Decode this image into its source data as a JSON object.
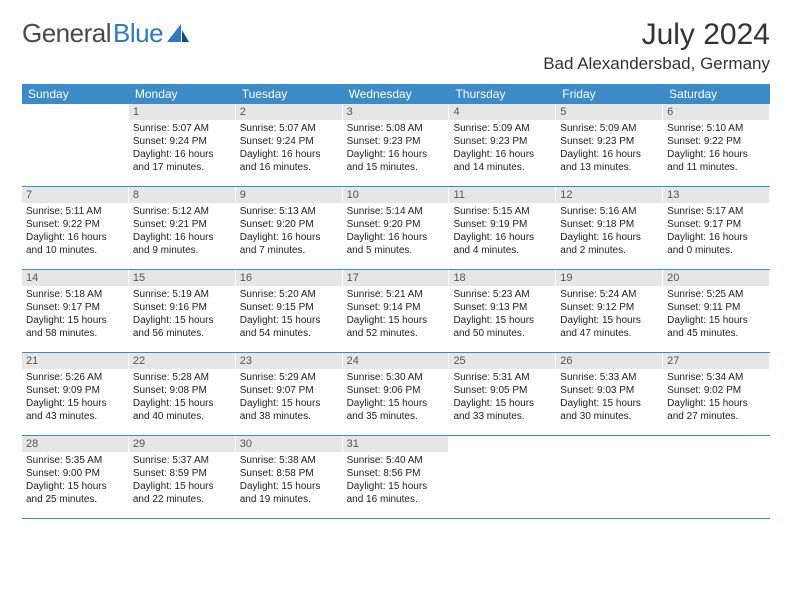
{
  "logo": {
    "text1": "General",
    "text2": "Blue"
  },
  "title": "July 2024",
  "location": "Bad Alexandersbad, Germany",
  "colors": {
    "header_bg": "#3b8bc9",
    "header_text": "#ffffff",
    "daynum_bg": "#e6e6e6",
    "daynum_text": "#555555",
    "body_text": "#222222",
    "row_border": "#3b8bc9",
    "logo_gray": "#4a4a4a",
    "logo_blue": "#2f7ac1",
    "page_bg": "#ffffff"
  },
  "typography": {
    "title_fontsize": 30,
    "location_fontsize": 17,
    "header_fontsize": 12,
    "daynum_fontsize": 11,
    "body_fontsize": 10,
    "logo_fontsize": 26
  },
  "day_headers": [
    "Sunday",
    "Monday",
    "Tuesday",
    "Wednesday",
    "Thursday",
    "Friday",
    "Saturday"
  ],
  "weeks": [
    [
      {
        "n": "",
        "sr": "",
        "ss": "",
        "dl": ""
      },
      {
        "n": "1",
        "sr": "Sunrise: 5:07 AM",
        "ss": "Sunset: 9:24 PM",
        "dl": "Daylight: 16 hours and 17 minutes."
      },
      {
        "n": "2",
        "sr": "Sunrise: 5:07 AM",
        "ss": "Sunset: 9:24 PM",
        "dl": "Daylight: 16 hours and 16 minutes."
      },
      {
        "n": "3",
        "sr": "Sunrise: 5:08 AM",
        "ss": "Sunset: 9:23 PM",
        "dl": "Daylight: 16 hours and 15 minutes."
      },
      {
        "n": "4",
        "sr": "Sunrise: 5:09 AM",
        "ss": "Sunset: 9:23 PM",
        "dl": "Daylight: 16 hours and 14 minutes."
      },
      {
        "n": "5",
        "sr": "Sunrise: 5:09 AM",
        "ss": "Sunset: 9:23 PM",
        "dl": "Daylight: 16 hours and 13 minutes."
      },
      {
        "n": "6",
        "sr": "Sunrise: 5:10 AM",
        "ss": "Sunset: 9:22 PM",
        "dl": "Daylight: 16 hours and 11 minutes."
      }
    ],
    [
      {
        "n": "7",
        "sr": "Sunrise: 5:11 AM",
        "ss": "Sunset: 9:22 PM",
        "dl": "Daylight: 16 hours and 10 minutes."
      },
      {
        "n": "8",
        "sr": "Sunrise: 5:12 AM",
        "ss": "Sunset: 9:21 PM",
        "dl": "Daylight: 16 hours and 9 minutes."
      },
      {
        "n": "9",
        "sr": "Sunrise: 5:13 AM",
        "ss": "Sunset: 9:20 PM",
        "dl": "Daylight: 16 hours and 7 minutes."
      },
      {
        "n": "10",
        "sr": "Sunrise: 5:14 AM",
        "ss": "Sunset: 9:20 PM",
        "dl": "Daylight: 16 hours and 5 minutes."
      },
      {
        "n": "11",
        "sr": "Sunrise: 5:15 AM",
        "ss": "Sunset: 9:19 PM",
        "dl": "Daylight: 16 hours and 4 minutes."
      },
      {
        "n": "12",
        "sr": "Sunrise: 5:16 AM",
        "ss": "Sunset: 9:18 PM",
        "dl": "Daylight: 16 hours and 2 minutes."
      },
      {
        "n": "13",
        "sr": "Sunrise: 5:17 AM",
        "ss": "Sunset: 9:17 PM",
        "dl": "Daylight: 16 hours and 0 minutes."
      }
    ],
    [
      {
        "n": "14",
        "sr": "Sunrise: 5:18 AM",
        "ss": "Sunset: 9:17 PM",
        "dl": "Daylight: 15 hours and 58 minutes."
      },
      {
        "n": "15",
        "sr": "Sunrise: 5:19 AM",
        "ss": "Sunset: 9:16 PM",
        "dl": "Daylight: 15 hours and 56 minutes."
      },
      {
        "n": "16",
        "sr": "Sunrise: 5:20 AM",
        "ss": "Sunset: 9:15 PM",
        "dl": "Daylight: 15 hours and 54 minutes."
      },
      {
        "n": "17",
        "sr": "Sunrise: 5:21 AM",
        "ss": "Sunset: 9:14 PM",
        "dl": "Daylight: 15 hours and 52 minutes."
      },
      {
        "n": "18",
        "sr": "Sunrise: 5:23 AM",
        "ss": "Sunset: 9:13 PM",
        "dl": "Daylight: 15 hours and 50 minutes."
      },
      {
        "n": "19",
        "sr": "Sunrise: 5:24 AM",
        "ss": "Sunset: 9:12 PM",
        "dl": "Daylight: 15 hours and 47 minutes."
      },
      {
        "n": "20",
        "sr": "Sunrise: 5:25 AM",
        "ss": "Sunset: 9:11 PM",
        "dl": "Daylight: 15 hours and 45 minutes."
      }
    ],
    [
      {
        "n": "21",
        "sr": "Sunrise: 5:26 AM",
        "ss": "Sunset: 9:09 PM",
        "dl": "Daylight: 15 hours and 43 minutes."
      },
      {
        "n": "22",
        "sr": "Sunrise: 5:28 AM",
        "ss": "Sunset: 9:08 PM",
        "dl": "Daylight: 15 hours and 40 minutes."
      },
      {
        "n": "23",
        "sr": "Sunrise: 5:29 AM",
        "ss": "Sunset: 9:07 PM",
        "dl": "Daylight: 15 hours and 38 minutes."
      },
      {
        "n": "24",
        "sr": "Sunrise: 5:30 AM",
        "ss": "Sunset: 9:06 PM",
        "dl": "Daylight: 15 hours and 35 minutes."
      },
      {
        "n": "25",
        "sr": "Sunrise: 5:31 AM",
        "ss": "Sunset: 9:05 PM",
        "dl": "Daylight: 15 hours and 33 minutes."
      },
      {
        "n": "26",
        "sr": "Sunrise: 5:33 AM",
        "ss": "Sunset: 9:03 PM",
        "dl": "Daylight: 15 hours and 30 minutes."
      },
      {
        "n": "27",
        "sr": "Sunrise: 5:34 AM",
        "ss": "Sunset: 9:02 PM",
        "dl": "Daylight: 15 hours and 27 minutes."
      }
    ],
    [
      {
        "n": "28",
        "sr": "Sunrise: 5:35 AM",
        "ss": "Sunset: 9:00 PM",
        "dl": "Daylight: 15 hours and 25 minutes."
      },
      {
        "n": "29",
        "sr": "Sunrise: 5:37 AM",
        "ss": "Sunset: 8:59 PM",
        "dl": "Daylight: 15 hours and 22 minutes."
      },
      {
        "n": "30",
        "sr": "Sunrise: 5:38 AM",
        "ss": "Sunset: 8:58 PM",
        "dl": "Daylight: 15 hours and 19 minutes."
      },
      {
        "n": "31",
        "sr": "Sunrise: 5:40 AM",
        "ss": "Sunset: 8:56 PM",
        "dl": "Daylight: 15 hours and 16 minutes."
      },
      {
        "n": "",
        "sr": "",
        "ss": "",
        "dl": ""
      },
      {
        "n": "",
        "sr": "",
        "ss": "",
        "dl": ""
      },
      {
        "n": "",
        "sr": "",
        "ss": "",
        "dl": ""
      }
    ]
  ]
}
